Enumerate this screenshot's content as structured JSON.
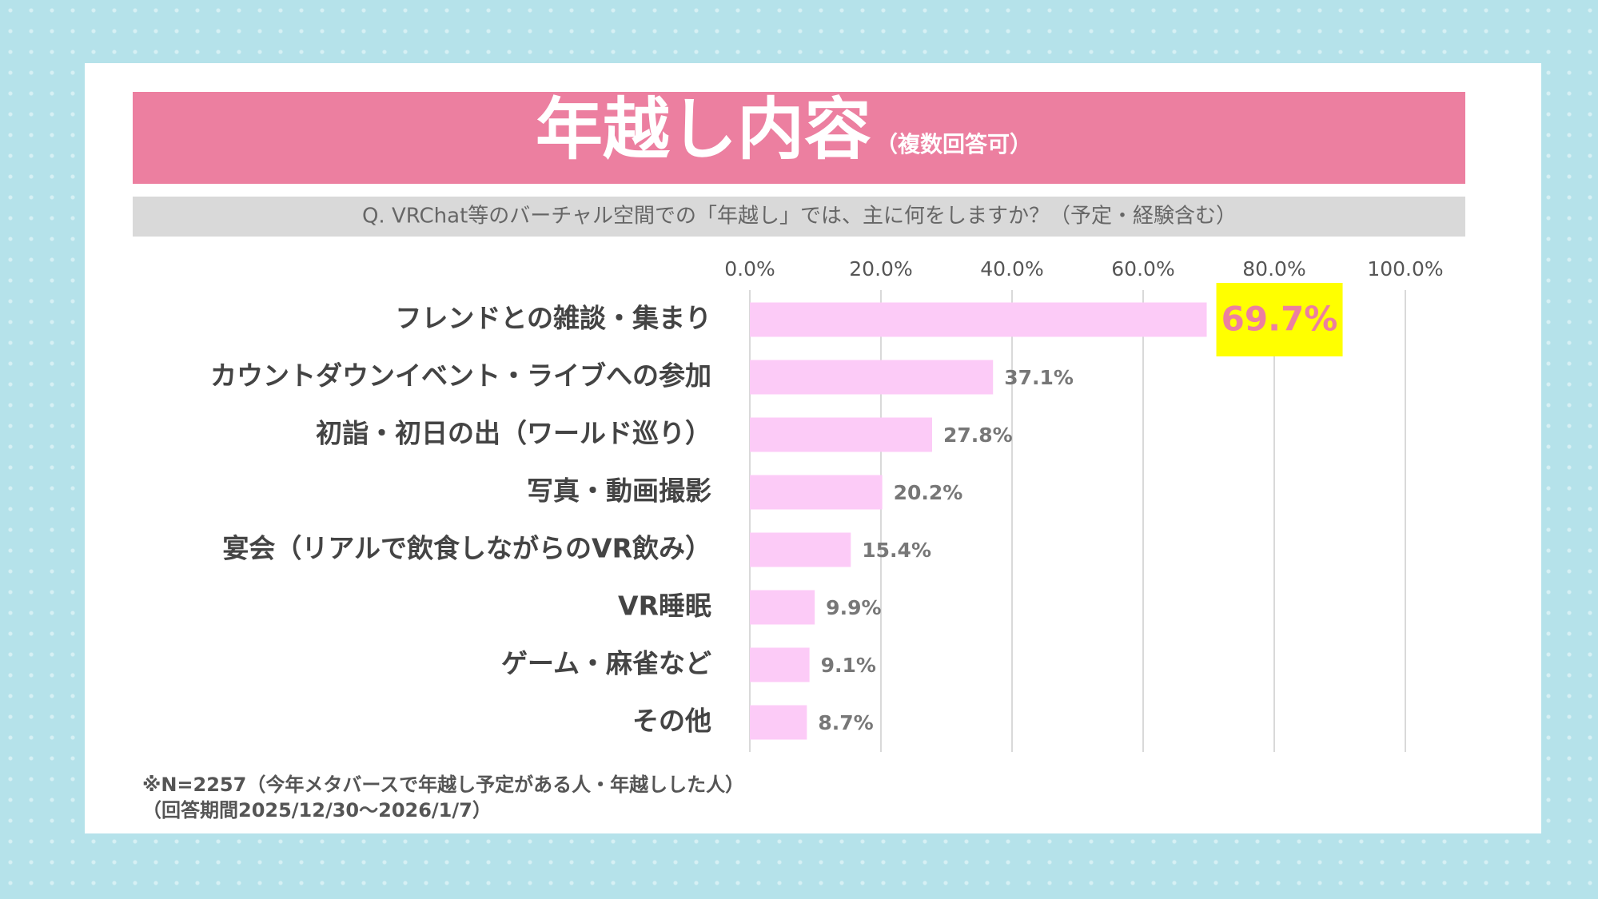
{
  "chart_data": {
    "type": "bar",
    "orientation": "horizontal",
    "title": "年越し内容",
    "subtitle": "（複数回答可）",
    "question": "Q. VRChat等のバーチャル空間での「年越し」では、主に何をしますか？（予定・経験含む）",
    "categories": [
      "フレンドとの雑談・集まり",
      "カウントダウンイベント・ライブへの参加",
      "初詣・初日の出（ワールド巡り）",
      "写真・動画撮影",
      "宴会（リアルで飲食しながらのVR飲み）",
      "VR睡眠",
      "ゲーム・麻雀など",
      "その他"
    ],
    "values": [
      69.7,
      37.1,
      27.8,
      20.2,
      15.4,
      9.9,
      9.1,
      8.7
    ],
    "value_labels": [
      "69.7%",
      "37.1%",
      "27.8%",
      "20.2%",
      "15.4%",
      "9.9%",
      "9.1%",
      "8.7%"
    ],
    "color": "#fccbf7",
    "xlim": [
      0,
      100
    ],
    "xticks": [
      {
        "value": 0,
        "label": "0.0%"
      },
      {
        "value": 20,
        "label": "20.0%"
      },
      {
        "value": 40,
        "label": "40.0%"
      },
      {
        "value": 60,
        "label": "60.0%"
      },
      {
        "value": 80,
        "label": "80.0%"
      },
      {
        "value": 100,
        "label": "100.0%"
      }
    ],
    "grid": true,
    "notes": [
      "※N=2257（今年メタバースで年越し予定がある人・年越しした人）",
      "（回答期間2025/12/30〜2026/1/7）"
    ]
  }
}
